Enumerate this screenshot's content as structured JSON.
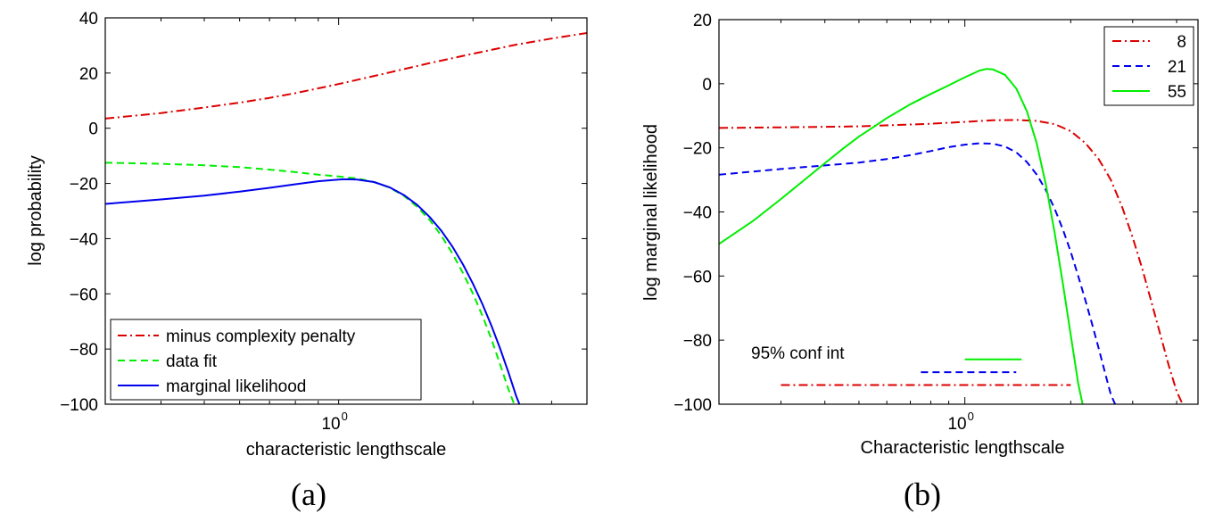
{
  "chart_data": [
    {
      "type": "line",
      "caption": "(a)",
      "title": "",
      "xlabel": "characteristic lengthscale",
      "ylabel": "log probability",
      "xscale": "log",
      "xlim": [
        0.3,
        3.6
      ],
      "ylim": [
        -100,
        40
      ],
      "x_tick_label": "10",
      "x_tick_exponent": "0",
      "y_tick_labels": [
        "40",
        "20",
        "0",
        "−20",
        "−40",
        "−60",
        "−80",
        "−100"
      ],
      "y_ticks": [
        40,
        20,
        0,
        -20,
        -40,
        -60,
        -80,
        -100
      ],
      "legend_position": "bottom-left",
      "series": [
        {
          "name": "minus complexity penalty",
          "color": "#dd0000",
          "dash": "dashdot",
          "x": [
            0.3,
            0.4,
            0.5,
            0.6,
            0.7,
            0.8,
            1.0,
            1.3,
            1.6,
            2.0,
            2.5,
            3.0,
            3.6
          ],
          "y": [
            3.5,
            5.5,
            7.5,
            9.3,
            11,
            12.7,
            16,
            20.2,
            23.6,
            27,
            30.3,
            32.5,
            34.5
          ]
        },
        {
          "name": "data fit",
          "color": "#00ee00",
          "dash": "dashed",
          "x": [
            0.3,
            0.4,
            0.5,
            0.6,
            0.7,
            0.8,
            0.9,
            1.0,
            1.1,
            1.2,
            1.3,
            1.4,
            1.5,
            1.6,
            1.7,
            1.8,
            1.9,
            2.0,
            2.1,
            2.2,
            2.3,
            2.4,
            2.5
          ],
          "y": [
            -12.5,
            -12.9,
            -13.4,
            -14.1,
            -15,
            -15.9,
            -16.8,
            -17.5,
            -18.2,
            -19.5,
            -21.5,
            -24.5,
            -28.5,
            -33.3,
            -39,
            -45.5,
            -52.5,
            -60,
            -68,
            -76.5,
            -85.5,
            -94.5,
            -102
          ]
        },
        {
          "name": "marginal likelihood",
          "color": "#0000ee",
          "dash": "solid",
          "x": [
            0.3,
            0.4,
            0.5,
            0.6,
            0.7,
            0.8,
            0.9,
            1.0,
            1.05,
            1.1,
            1.2,
            1.3,
            1.4,
            1.5,
            1.6,
            1.7,
            1.8,
            1.9,
            2.0,
            2.1,
            2.2,
            2.3,
            2.4,
            2.5,
            2.6
          ],
          "y": [
            -27.4,
            -25.8,
            -24.4,
            -23,
            -21.6,
            -20.3,
            -19.2,
            -18.6,
            -18.5,
            -18.6,
            -19.5,
            -21.4,
            -24.2,
            -27.8,
            -32.2,
            -37.2,
            -43,
            -49.4,
            -56.4,
            -63.8,
            -71.6,
            -79.8,
            -88.4,
            -97.2,
            -104
          ]
        }
      ]
    },
    {
      "type": "line",
      "caption": "(b)",
      "title": "",
      "xlabel": "Characteristic lengthscale",
      "ylabel": "log marginal likelihood",
      "xscale": "log",
      "xlim": [
        0.2,
        4.6
      ],
      "ylim": [
        -100,
        20
      ],
      "x_tick_label": "10",
      "x_tick_exponent": "0",
      "y_tick_labels": [
        "20",
        "0",
        "−20",
        "−40",
        "−60",
        "−80",
        "−100"
      ],
      "y_ticks": [
        20,
        0,
        -20,
        -40,
        -60,
        -80,
        -100
      ],
      "legend_position": "top-right",
      "annotation": "95% conf int",
      "conf_intervals": [
        {
          "name": "55",
          "y": -86,
          "x_range": [
            1.0,
            1.45
          ]
        },
        {
          "name": "21",
          "y": -90,
          "x_range": [
            0.75,
            1.4
          ]
        },
        {
          "name": "8",
          "y": -94,
          "x_range": [
            0.3,
            2.0
          ]
        }
      ],
      "series": [
        {
          "name": "8",
          "color": "#dd0000",
          "dash": "dashdot",
          "x": [
            0.2,
            0.3,
            0.5,
            0.8,
            1.0,
            1.2,
            1.4,
            1.6,
            1.8,
            2.0,
            2.2,
            2.4,
            2.6,
            2.8,
            3.0,
            3.2,
            3.4,
            3.6,
            3.8,
            4.0,
            4.2
          ],
          "y": [
            -13.8,
            -13.6,
            -13.3,
            -12.5,
            -11.9,
            -11.4,
            -11.3,
            -11.6,
            -12.6,
            -14.8,
            -18.5,
            -23.5,
            -30,
            -38.5,
            -48,
            -58,
            -68.5,
            -78.5,
            -88,
            -96,
            -101
          ]
        },
        {
          "name": "21",
          "color": "#0000ee",
          "dash": "dashed",
          "x": [
            0.2,
            0.3,
            0.4,
            0.5,
            0.6,
            0.7,
            0.8,
            0.9,
            1.0,
            1.1,
            1.2,
            1.3,
            1.4,
            1.5,
            1.6,
            1.7,
            1.8,
            1.9,
            2.0,
            2.1,
            2.2,
            2.3,
            2.4,
            2.5,
            2.6,
            2.7
          ],
          "y": [
            -28.4,
            -26.6,
            -25.5,
            -24.6,
            -23.5,
            -22.3,
            -21,
            -19.8,
            -19,
            -18.6,
            -18.7,
            -19.6,
            -21.4,
            -24.4,
            -28.3,
            -33.2,
            -39,
            -45.5,
            -52.5,
            -60,
            -67.5,
            -75,
            -82.5,
            -90,
            -97,
            -101
          ]
        },
        {
          "name": "55",
          "color": "#00ee00",
          "dash": "solid",
          "x": [
            0.2,
            0.25,
            0.3,
            0.35,
            0.4,
            0.45,
            0.5,
            0.55,
            0.6,
            0.7,
            0.8,
            0.9,
            1.0,
            1.1,
            1.15,
            1.2,
            1.3,
            1.4,
            1.5,
            1.6,
            1.7,
            1.8,
            1.9,
            2.0,
            2.1,
            2.2
          ],
          "y": [
            -50,
            -42.8,
            -36,
            -30,
            -24.8,
            -20.3,
            -16.5,
            -13.5,
            -10.7,
            -6.4,
            -3.2,
            -0.5,
            2,
            4.1,
            4.6,
            4.5,
            2.8,
            -1.5,
            -8.5,
            -18.5,
            -31.5,
            -46.5,
            -62.5,
            -78.5,
            -93.5,
            -104
          ]
        }
      ]
    }
  ]
}
